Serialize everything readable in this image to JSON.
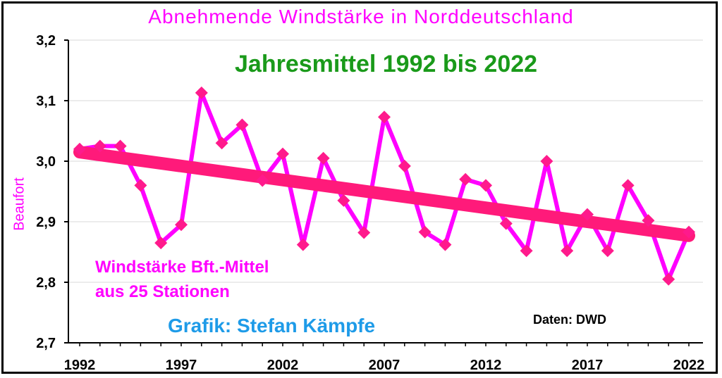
{
  "chart_data": {
    "type": "line",
    "title": "Abnehmende  Windstärke  in  Norddeutschland",
    "subtitle": "Jahresmittel 1992 bis 2022",
    "ylabel": "Beaufort",
    "xlabel": "",
    "annotations": [
      "Windstärke Bft.-Mittel",
      "aus 25 Stationen",
      "Grafik: Stefan Kämpfe",
      "Daten: DWD"
    ],
    "x_tick_labels": [
      "1992",
      "1997",
      "2002",
      "2007",
      "2012",
      "2017",
      "2022"
    ],
    "y_tick_labels": [
      "2,7",
      "2,8",
      "2,9",
      "3,0",
      "3,1",
      "3,2"
    ],
    "ylim": [
      2.7,
      3.2
    ],
    "xlim": [
      1992,
      2022
    ],
    "grid": true,
    "x": [
      1992,
      1993,
      1994,
      1995,
      1996,
      1997,
      1998,
      1999,
      2000,
      2001,
      2002,
      2003,
      2004,
      2005,
      2006,
      2007,
      2008,
      2009,
      2010,
      2011,
      2012,
      2013,
      2014,
      2015,
      2016,
      2017,
      2018,
      2019,
      2020,
      2021,
      2022
    ],
    "series": [
      {
        "values": [
          3.02,
          3.025,
          3.025,
          2.96,
          2.865,
          2.895,
          3.113,
          3.03,
          3.06,
          2.968,
          3.012,
          2.862,
          3.005,
          2.935,
          2.882,
          3.073,
          2.992,
          2.883,
          2.862,
          2.97,
          2.96,
          2.897,
          2.852,
          3.0,
          2.852,
          2.912,
          2.852,
          2.96,
          2.902,
          2.805,
          2.883
        ],
        "color": "#ff00ff",
        "marker": "diamond"
      }
    ],
    "trendline": {
      "start": [
        1992,
        3.015
      ],
      "end": [
        2022,
        2.877
      ],
      "color": "#ff1a7a"
    }
  }
}
